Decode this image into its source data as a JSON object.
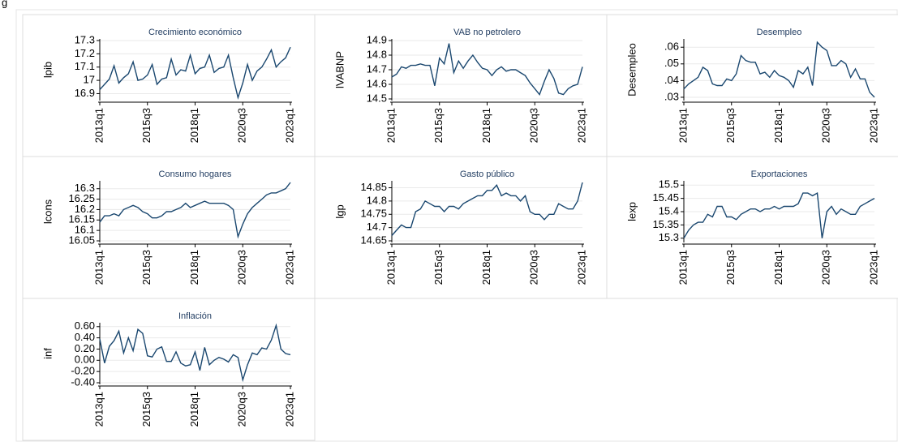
{
  "fragment": "g",
  "chart_data": [
    {
      "type": "line",
      "title": "Crecimiento económico",
      "y_label": "lpib",
      "color": "#1a476f",
      "grid": true,
      "x": [
        "2013q1",
        "2013q2",
        "2013q3",
        "2013q4",
        "2014q1",
        "2014q2",
        "2014q3",
        "2014q4",
        "2015q1",
        "2015q2",
        "2015q3",
        "2015q4",
        "2016q1",
        "2016q2",
        "2016q3",
        "2016q4",
        "2017q1",
        "2017q2",
        "2017q3",
        "2017q4",
        "2018q1",
        "2018q2",
        "2018q3",
        "2018q4",
        "2019q1",
        "2019q2",
        "2019q3",
        "2019q4",
        "2020q1",
        "2020q2",
        "2020q3",
        "2020q4",
        "2021q1",
        "2021q2",
        "2021q3",
        "2021q4",
        "2022q1",
        "2022q2",
        "2022q3",
        "2022q4",
        "2023q1"
      ],
      "values": [
        16.93,
        16.97,
        17.01,
        17.11,
        16.98,
        17.02,
        17.05,
        17.14,
        17.0,
        17.01,
        17.04,
        17.12,
        16.97,
        17.01,
        17.02,
        17.16,
        17.04,
        17.08,
        17.07,
        17.19,
        17.05,
        17.09,
        17.1,
        17.19,
        17.06,
        17.09,
        17.1,
        17.19,
        17.02,
        16.87,
        16.98,
        17.12,
        17.0,
        17.07,
        17.1,
        17.16,
        17.23,
        17.1,
        17.14,
        17.17,
        17.25
      ],
      "ylim": [
        16.86,
        17.3
      ],
      "yticks": [
        16.9,
        17,
        17.1,
        17.2,
        17.3
      ],
      "xticks": [
        "2013q1",
        "2015q3",
        "2018q1",
        "2020q3",
        "2023q1"
      ]
    },
    {
      "type": "line",
      "title": "VAB no petrolero",
      "y_label": "lVABNP",
      "color": "#1a476f",
      "grid": true,
      "x": [
        "2013q1",
        "2013q2",
        "2013q3",
        "2013q4",
        "2014q1",
        "2014q2",
        "2014q3",
        "2014q4",
        "2015q1",
        "2015q2",
        "2015q3",
        "2015q4",
        "2016q1",
        "2016q2",
        "2016q3",
        "2016q4",
        "2017q1",
        "2017q2",
        "2017q3",
        "2017q4",
        "2018q1",
        "2018q2",
        "2018q3",
        "2018q4",
        "2019q1",
        "2019q2",
        "2019q3",
        "2019q4",
        "2020q1",
        "2020q2",
        "2020q3",
        "2020q4",
        "2021q1",
        "2021q2",
        "2021q3",
        "2021q4",
        "2022q1",
        "2022q2",
        "2022q3",
        "2022q4",
        "2023q1"
      ],
      "values": [
        14.65,
        14.67,
        14.72,
        14.71,
        14.73,
        14.73,
        14.74,
        14.73,
        14.73,
        14.59,
        14.78,
        14.74,
        14.88,
        14.68,
        14.76,
        14.71,
        14.76,
        14.8,
        14.75,
        14.71,
        14.7,
        14.66,
        14.7,
        14.72,
        14.69,
        14.7,
        14.7,
        14.68,
        14.66,
        14.61,
        14.57,
        14.53,
        14.62,
        14.7,
        14.64,
        14.54,
        14.53,
        14.57,
        14.59,
        14.6,
        14.72
      ],
      "ylim": [
        14.5,
        14.9
      ],
      "yticks": [
        14.5,
        14.6,
        14.7,
        14.8,
        14.9
      ],
      "xticks": [
        "2013q1",
        "2015q3",
        "2018q1",
        "2020q3",
        "2023q1"
      ]
    },
    {
      "type": "line",
      "title": "Desempleo",
      "y_label": "Desempleo",
      "color": "#1a476f",
      "grid": true,
      "x": [
        "2013q1",
        "2013q2",
        "2013q3",
        "2013q4",
        "2014q1",
        "2014q2",
        "2014q3",
        "2014q4",
        "2015q1",
        "2015q2",
        "2015q3",
        "2015q4",
        "2016q1",
        "2016q2",
        "2016q3",
        "2016q4",
        "2017q1",
        "2017q2",
        "2017q3",
        "2017q4",
        "2018q1",
        "2018q2",
        "2018q3",
        "2018q4",
        "2019q1",
        "2019q2",
        "2019q3",
        "2019q4",
        "2020q1",
        "2020q2",
        "2020q3",
        "2020q4",
        "2021q1",
        "2021q2",
        "2021q3",
        "2021q4",
        "2022q1",
        "2022q2",
        "2022q3",
        "2022q4",
        "2023q1"
      ],
      "values": [
        0.035,
        0.038,
        0.04,
        0.042,
        0.048,
        0.046,
        0.038,
        0.037,
        0.037,
        0.041,
        0.04,
        0.044,
        0.055,
        0.052,
        0.051,
        0.051,
        0.044,
        0.045,
        0.042,
        0.046,
        0.043,
        0.042,
        0.04,
        0.036,
        0.046,
        0.044,
        0.048,
        0.037,
        0.063,
        0.06,
        0.058,
        0.049,
        0.049,
        0.052,
        0.05,
        0.042,
        0.047,
        0.041,
        0.041,
        0.033,
        0.03
      ],
      "ylim": [
        0.029,
        0.064
      ],
      "yticks": [
        {
          "value": 0.03,
          "label": ".03"
        },
        {
          "value": 0.04,
          "label": ".04"
        },
        {
          "value": 0.05,
          "label": ".05"
        },
        {
          "value": 0.06,
          "label": ".06"
        }
      ],
      "xticks": [
        "2013q1",
        "2015q3",
        "2018q1",
        "2020q3",
        "2023q1"
      ]
    },
    {
      "type": "line",
      "title": "Consumo hogares",
      "y_label": "lcons",
      "color": "#1a476f",
      "grid": true,
      "x": [
        "2013q1",
        "2013q2",
        "2013q3",
        "2013q4",
        "2014q1",
        "2014q2",
        "2014q3",
        "2014q4",
        "2015q1",
        "2015q2",
        "2015q3",
        "2015q4",
        "2016q1",
        "2016q2",
        "2016q3",
        "2016q4",
        "2017q1",
        "2017q2",
        "2017q3",
        "2017q4",
        "2018q1",
        "2018q2",
        "2018q3",
        "2018q4",
        "2019q1",
        "2019q2",
        "2019q3",
        "2019q4",
        "2020q1",
        "2020q2",
        "2020q3",
        "2020q4",
        "2021q1",
        "2021q2",
        "2021q3",
        "2021q4",
        "2022q1",
        "2022q2",
        "2022q3",
        "2022q4",
        "2023q1"
      ],
      "values": [
        16.14,
        16.17,
        16.17,
        16.18,
        16.17,
        16.2,
        16.21,
        16.22,
        16.21,
        16.19,
        16.18,
        16.16,
        16.16,
        16.17,
        16.19,
        16.19,
        16.2,
        16.21,
        16.23,
        16.21,
        16.22,
        16.23,
        16.24,
        16.23,
        16.23,
        16.23,
        16.23,
        16.22,
        16.2,
        16.07,
        16.13,
        16.18,
        16.21,
        16.23,
        16.25,
        16.27,
        16.28,
        16.28,
        16.29,
        16.3,
        16.33
      ],
      "ylim": [
        16.05,
        16.33
      ],
      "yticks": [
        16.05,
        16.1,
        16.15,
        16.2,
        16.25,
        16.3
      ],
      "xticks": [
        "2013q1",
        "2015q3",
        "2018q1",
        "2020q3",
        "2023q1"
      ]
    },
    {
      "type": "line",
      "title": "Gasto público",
      "y_label": "lgp",
      "color": "#1a476f",
      "grid": true,
      "x": [
        "2013q1",
        "2013q2",
        "2013q3",
        "2013q4",
        "2014q1",
        "2014q2",
        "2014q3",
        "2014q4",
        "2015q1",
        "2015q2",
        "2015q3",
        "2015q4",
        "2016q1",
        "2016q2",
        "2016q3",
        "2016q4",
        "2017q1",
        "2017q2",
        "2017q3",
        "2017q4",
        "2018q1",
        "2018q2",
        "2018q3",
        "2018q4",
        "2019q1",
        "2019q2",
        "2019q3",
        "2019q4",
        "2020q1",
        "2020q2",
        "2020q3",
        "2020q4",
        "2021q1",
        "2021q2",
        "2021q3",
        "2021q4",
        "2022q1",
        "2022q2",
        "2022q3",
        "2022q4",
        "2023q1"
      ],
      "values": [
        14.67,
        14.69,
        14.71,
        14.7,
        14.7,
        14.76,
        14.77,
        14.8,
        14.79,
        14.78,
        14.78,
        14.76,
        14.78,
        14.78,
        14.77,
        14.79,
        14.8,
        14.81,
        14.82,
        14.82,
        14.84,
        14.84,
        14.86,
        14.82,
        14.83,
        14.82,
        14.82,
        14.8,
        14.82,
        14.76,
        14.75,
        14.75,
        14.73,
        14.75,
        14.75,
        14.79,
        14.78,
        14.77,
        14.77,
        14.8,
        14.87
      ],
      "ylim": [
        14.65,
        14.87
      ],
      "yticks": [
        14.65,
        14.7,
        14.75,
        14.8,
        14.85
      ],
      "xticks": [
        "2013q1",
        "2015q3",
        "2018q1",
        "2020q3",
        "2023q1"
      ]
    },
    {
      "type": "line",
      "title": "Exportaciones",
      "y_label": "lexp",
      "color": "#1a476f",
      "grid": true,
      "x": [
        "2013q1",
        "2013q2",
        "2013q3",
        "2013q4",
        "2014q1",
        "2014q2",
        "2014q3",
        "2014q4",
        "2015q1",
        "2015q2",
        "2015q3",
        "2015q4",
        "2016q1",
        "2016q2",
        "2016q3",
        "2016q4",
        "2017q1",
        "2017q2",
        "2017q3",
        "2017q4",
        "2018q1",
        "2018q2",
        "2018q3",
        "2018q4",
        "2019q1",
        "2019q2",
        "2019q3",
        "2019q4",
        "2020q1",
        "2020q2",
        "2020q3",
        "2020q4",
        "2021q1",
        "2021q2",
        "2021q3",
        "2021q4",
        "2022q1",
        "2022q2",
        "2022q3",
        "2022q4",
        "2023q1"
      ],
      "values": [
        15.3,
        15.33,
        15.35,
        15.36,
        15.36,
        15.39,
        15.38,
        15.42,
        15.42,
        15.38,
        15.38,
        15.37,
        15.39,
        15.4,
        15.41,
        15.41,
        15.4,
        15.41,
        15.41,
        15.42,
        15.41,
        15.42,
        15.42,
        15.42,
        15.43,
        15.47,
        15.47,
        15.46,
        15.47,
        15.3,
        15.4,
        15.42,
        15.39,
        15.41,
        15.4,
        15.39,
        15.39,
        15.42,
        15.43,
        15.44,
        15.45
      ],
      "ylim": [
        15.29,
        15.51
      ],
      "yticks": [
        15.3,
        15.35,
        15.4,
        15.45,
        15.5
      ],
      "xticks": [
        "2013q1",
        "2015q3",
        "2018q1",
        "2020q3",
        "2023q1"
      ]
    },
    {
      "type": "line",
      "title": "Inflación",
      "y_label": "inf",
      "color": "#1a476f",
      "grid": true,
      "x": [
        "2013q1",
        "2013q2",
        "2013q3",
        "2013q4",
        "2014q1",
        "2014q2",
        "2014q3",
        "2014q4",
        "2015q1",
        "2015q2",
        "2015q3",
        "2015q4",
        "2016q1",
        "2016q2",
        "2016q3",
        "2016q4",
        "2017q1",
        "2017q2",
        "2017q3",
        "2017q4",
        "2018q1",
        "2018q2",
        "2018q3",
        "2018q4",
        "2019q1",
        "2019q2",
        "2019q3",
        "2019q4",
        "2020q1",
        "2020q2",
        "2020q3",
        "2020q4",
        "2021q1",
        "2021q2",
        "2021q3",
        "2021q4",
        "2022q1",
        "2022q2",
        "2022q3",
        "2022q4",
        "2023q1"
      ],
      "values": [
        0.38,
        -0.05,
        0.25,
        0.35,
        0.52,
        0.13,
        0.4,
        0.17,
        0.55,
        0.48,
        0.08,
        0.06,
        0.2,
        0.24,
        -0.02,
        -0.02,
        0.15,
        -0.05,
        -0.1,
        -0.08,
        0.15,
        -0.18,
        0.23,
        -0.08,
        0.0,
        0.05,
        0.02,
        -0.03,
        0.1,
        0.05,
        -0.35,
        -0.08,
        0.13,
        0.1,
        0.22,
        0.2,
        0.36,
        0.62,
        0.2,
        0.12,
        0.1
      ],
      "ylim": [
        -0.4,
        0.64
      ],
      "yticks": [
        {
          "value": -0.4,
          "label": "-0.40"
        },
        {
          "value": -0.2,
          "label": "-0.20"
        },
        {
          "value": 0,
          "label": "0.00"
        },
        {
          "value": 0.2,
          "label": "0.20"
        },
        {
          "value": 0.4,
          "label": "0.40"
        },
        {
          "value": 0.6,
          "label": "0.60"
        }
      ],
      "xticks": [
        "2013q1",
        "2015q3",
        "2018q1",
        "2020q3",
        "2023q1"
      ]
    }
  ]
}
